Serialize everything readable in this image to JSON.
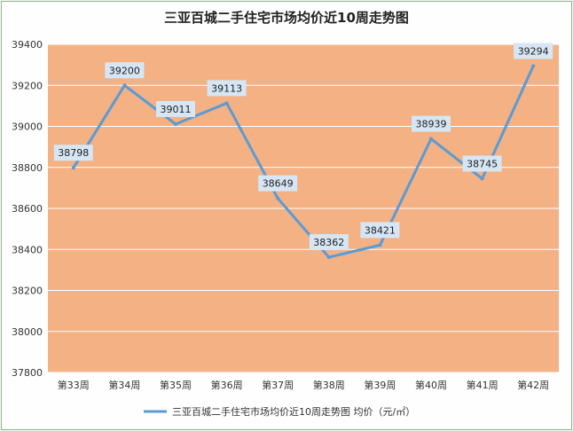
{
  "chart_data": {
    "type": "line",
    "title": "三亚百城二手住宅市场均价近10周走势图",
    "categories": [
      "第33周",
      "第34周",
      "第35周",
      "第36周",
      "第37周",
      "第38周",
      "第39周",
      "第40周",
      "第41周",
      "第42周"
    ],
    "series": [
      {
        "name": "三亚百城二手住宅市场均价近10周走势图 均价（元/㎡）",
        "values": [
          38798,
          39200,
          39011,
          39113,
          38649,
          38362,
          38421,
          38939,
          38745,
          39294
        ]
      }
    ],
    "ylim": [
      37800,
      39400
    ],
    "yticks": [
      37800,
      38000,
      38200,
      38400,
      38600,
      38800,
      39000,
      39200,
      39400
    ],
    "grid": true,
    "legend": "bottom",
    "colors": {
      "plot_background": "#f4b183",
      "line": "#5b9bd5",
      "gridline": "#ffffff",
      "data_label_background": "#d6e6f4"
    }
  }
}
